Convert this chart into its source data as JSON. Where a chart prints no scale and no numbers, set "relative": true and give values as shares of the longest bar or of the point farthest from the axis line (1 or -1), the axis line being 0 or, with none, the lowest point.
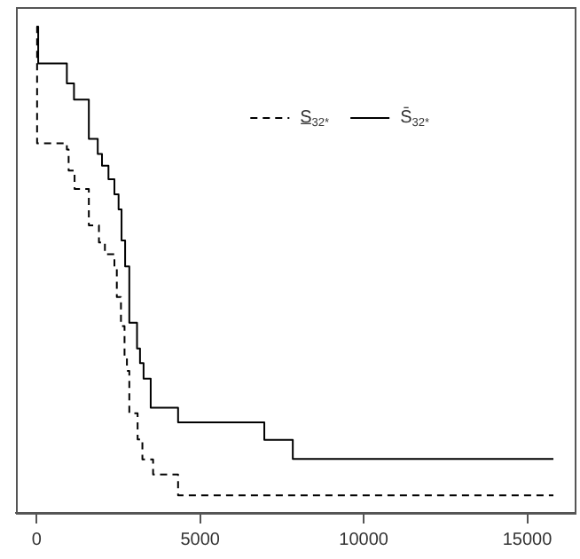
{
  "chart_data": {
    "type": "step",
    "relative": true,
    "xlim": [
      -630,
      16450
    ],
    "xticks": [
      0,
      5000,
      10000,
      15000
    ],
    "legend": "top right",
    "grid": false,
    "series": [
      {
        "name": "S̲$_{32*}$",
        "color": "#000000",
        "line_style": "dashed",
        "x": [
          0,
          16,
          926,
          980,
          1162,
          1598,
          1907,
          2089,
          2380,
          2453,
          2580,
          2689,
          2762,
          2835,
          3089,
          3235,
          3562,
          4326,
          15800
        ],
        "values": [
          1.0,
          0.76,
          0.747,
          0.704,
          0.666,
          0.591,
          0.556,
          0.532,
          0.505,
          0.444,
          0.384,
          0.323,
          0.292,
          0.205,
          0.151,
          0.11,
          0.079,
          0.036,
          0.036
        ]
      },
      {
        "name": "S̄$_{32*}$",
        "color": "#000000",
        "line_style": "solid",
        "x": [
          0,
          50,
          926,
          1144,
          1598,
          1870,
          2000,
          2198,
          2380,
          2507,
          2598,
          2707,
          2835,
          3071,
          3162,
          3271,
          3489,
          4326,
          6962,
          7833,
          15800
        ],
        "values": [
          1.0,
          0.924,
          0.883,
          0.85,
          0.769,
          0.738,
          0.714,
          0.686,
          0.655,
          0.624,
          0.56,
          0.507,
          0.391,
          0.338,
          0.308,
          0.276,
          0.216,
          0.186,
          0.15,
          0.111,
          0.111
        ]
      }
    ]
  }
}
